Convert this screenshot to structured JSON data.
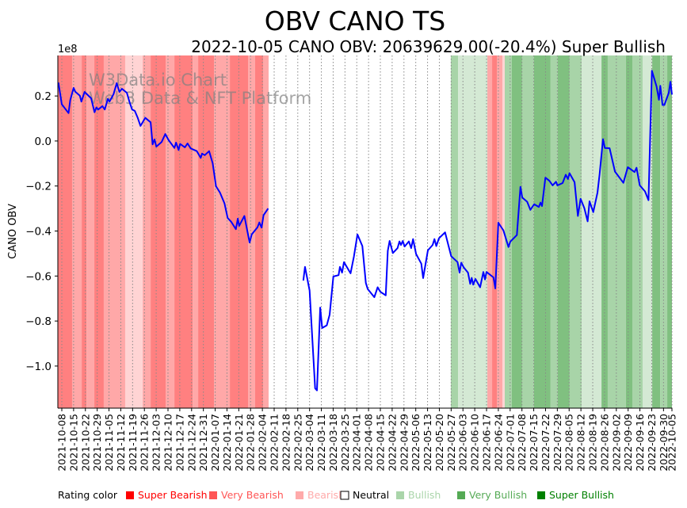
{
  "chart_data": {
    "type": "line",
    "title": "OBV CANO TS",
    "subtitle": "2022-10-05 CANO OBV: 20639629.00(-20.4%) Super Bullish",
    "ylabel": "CANO OBV",
    "y_scale_label": "1e8",
    "y_multiplier": 100000000,
    "ylim": [
      -1.187,
      0.38
    ],
    "yticks": [
      0.2,
      0.0,
      -0.2,
      -0.4,
      -0.6,
      -0.8,
      -1.0
    ],
    "ytick_labels": [
      "0.2",
      "0.0",
      "−0.2",
      "−0.4",
      "−0.6",
      "−0.8",
      "−1.0"
    ],
    "x_unit": "days since 2021-10-08",
    "xlim": [
      -2.35,
      362
    ],
    "xticks": [
      0,
      7,
      14,
      21,
      28,
      35,
      42,
      49,
      56,
      63,
      70,
      77,
      84,
      91,
      98,
      105,
      112,
      119,
      126,
      133,
      140,
      147,
      154,
      161,
      168,
      175,
      182,
      189,
      196,
      203,
      210,
      217,
      224,
      231,
      238,
      245,
      252,
      259,
      266,
      273,
      280,
      287,
      294,
      301,
      308,
      315,
      322,
      329,
      336,
      343,
      350,
      357,
      362
    ],
    "xtick_labels": [
      "2021-10-08",
      "2021-10-15",
      "2021-10-22",
      "2021-10-29",
      "2021-11-05",
      "2021-11-12",
      "2021-11-19",
      "2021-11-26",
      "2021-12-03",
      "2021-12-10",
      "2021-12-17",
      "2021-12-24",
      "2021-12-31",
      "2022-01-07",
      "2022-01-14",
      "2022-01-21",
      "2022-01-28",
      "2022-02-04",
      "2022-02-11",
      "2022-02-18",
      "2022-02-25",
      "2022-03-04",
      "2022-03-11",
      "2022-03-18",
      "2022-03-25",
      "2022-04-01",
      "2022-04-08",
      "2022-04-15",
      "2022-04-22",
      "2022-04-29",
      "2022-05-06",
      "2022-05-13",
      "2022-05-20",
      "2022-05-27",
      "2022-06-03",
      "2022-06-10",
      "2022-06-17",
      "2022-06-24",
      "2022-07-01",
      "2022-07-08",
      "2022-07-15",
      "2022-07-22",
      "2022-07-29",
      "2022-08-05",
      "2022-08-12",
      "2022-08-19",
      "2022-08-26",
      "2022-09-02",
      "2022-09-09",
      "2022-09-16",
      "2022-09-23",
      "2022-09-30",
      "2022-10-05"
    ],
    "grid": "vertical dotted at x ticks",
    "line_color": "#0000ff",
    "series": [
      {
        "name": "OBV segment 1",
        "points": [
          [
            -2,
            0.26
          ],
          [
            0,
            0.163
          ],
          [
            4,
            0.124
          ],
          [
            5,
            0.181
          ],
          [
            7,
            0.236
          ],
          [
            8,
            0.219
          ],
          [
            10.7,
            0.201
          ],
          [
            11.6,
            0.175
          ],
          [
            13.5,
            0.218
          ],
          [
            17.4,
            0.19
          ],
          [
            19.4,
            0.128
          ],
          [
            20.5,
            0.149
          ],
          [
            21.6,
            0.14
          ],
          [
            24.1,
            0.155
          ],
          [
            25.5,
            0.14
          ],
          [
            27.3,
            0.187
          ],
          [
            28.3,
            0.175
          ],
          [
            30.7,
            0.208
          ],
          [
            32.6,
            0.257
          ],
          [
            34.2,
            0.218
          ],
          [
            35.7,
            0.232
          ],
          [
            38.6,
            0.214
          ],
          [
            40.1,
            0.175
          ],
          [
            41.7,
            0.14
          ],
          [
            43.3,
            0.134
          ],
          [
            45.1,
            0.102
          ],
          [
            46.7,
            0.067
          ],
          [
            49.5,
            0.103
          ],
          [
            52.7,
            0.083
          ],
          [
            53.9,
            -0.015
          ],
          [
            55,
            0.007
          ],
          [
            56.1,
            -0.025
          ],
          [
            59.2,
            -0.005
          ],
          [
            61.4,
            0.031
          ],
          [
            63.3,
            0.005
          ],
          [
            66.8,
            -0.031
          ],
          [
            67.8,
            -0.007
          ],
          [
            69.3,
            -0.04
          ],
          [
            70.2,
            -0.013
          ],
          [
            73,
            -0.028
          ],
          [
            74.6,
            -0.011
          ],
          [
            76.5,
            -0.033
          ],
          [
            80.1,
            -0.045
          ],
          [
            82.4,
            -0.075
          ],
          [
            83.2,
            -0.056
          ],
          [
            84.8,
            -0.063
          ],
          [
            87.4,
            -0.045
          ],
          [
            89.5,
            -0.099
          ],
          [
            91.5,
            -0.201
          ],
          [
            93.9,
            -0.23
          ],
          [
            96.5,
            -0.277
          ],
          [
            98.4,
            -0.342
          ],
          [
            100.5,
            -0.359
          ],
          [
            103.3,
            -0.392
          ],
          [
            104.4,
            -0.345
          ],
          [
            105.2,
            -0.377
          ],
          [
            108.3,
            -0.333
          ],
          [
            111.4,
            -0.451
          ],
          [
            112.7,
            -0.415
          ],
          [
            116.1,
            -0.383
          ],
          [
            117.2,
            -0.362
          ],
          [
            118.5,
            -0.385
          ],
          [
            119.7,
            -0.33
          ],
          [
            122.4,
            -0.3
          ]
        ]
      },
      {
        "name": "OBV segment 2",
        "points": [
          [
            143.3,
            -0.62
          ],
          [
            144.3,
            -0.559
          ],
          [
            147,
            -0.664
          ],
          [
            150.3,
            -1.099
          ],
          [
            151.4,
            -1.108
          ],
          [
            153.3,
            -0.74
          ],
          [
            154.5,
            -0.831
          ],
          [
            157.2,
            -0.819
          ],
          [
            158.9,
            -0.772
          ],
          [
            161.1,
            -0.602
          ],
          [
            164.2,
            -0.596
          ],
          [
            165,
            -0.559
          ],
          [
            166.3,
            -0.585
          ],
          [
            167.4,
            -0.538
          ],
          [
            171.3,
            -0.588
          ],
          [
            173.3,
            -0.514
          ],
          [
            175.4,
            -0.415
          ],
          [
            178.3,
            -0.467
          ],
          [
            180.4,
            -0.631
          ],
          [
            181.5,
            -0.658
          ],
          [
            185.4,
            -0.694
          ],
          [
            187.4,
            -0.65
          ],
          [
            189,
            -0.67
          ],
          [
            192.2,
            -0.686
          ],
          [
            193.4,
            -0.488
          ],
          [
            194.5,
            -0.444
          ],
          [
            196.4,
            -0.498
          ],
          [
            199.2,
            -0.476
          ],
          [
            200.3,
            -0.446
          ],
          [
            201.2,
            -0.462
          ],
          [
            202.3,
            -0.444
          ],
          [
            203.4,
            -0.469
          ],
          [
            205.9,
            -0.446
          ],
          [
            207.3,
            -0.476
          ],
          [
            208.4,
            -0.436
          ],
          [
            210.2,
            -0.502
          ],
          [
            213.3,
            -0.545
          ],
          [
            214.4,
            -0.609
          ],
          [
            217.2,
            -0.486
          ],
          [
            220,
            -0.462
          ],
          [
            221.1,
            -0.436
          ],
          [
            222.2,
            -0.467
          ],
          [
            223.8,
            -0.432
          ],
          [
            227.4,
            -0.406
          ],
          [
            231,
            -0.512
          ],
          [
            234.8,
            -0.538
          ],
          [
            236,
            -0.585
          ],
          [
            237,
            -0.541
          ],
          [
            238.4,
            -0.561
          ],
          [
            241,
            -0.585
          ],
          [
            242.3,
            -0.635
          ],
          [
            243.2,
            -0.608
          ],
          [
            244.1,
            -0.638
          ],
          [
            245.4,
            -0.613
          ],
          [
            248.2,
            -0.65
          ],
          [
            250.1,
            -0.582
          ],
          [
            251.1,
            -0.615
          ],
          [
            252,
            -0.582
          ],
          [
            256.1,
            -0.606
          ],
          [
            257.2,
            -0.655
          ],
          [
            259,
            -0.363
          ],
          [
            262,
            -0.397
          ],
          [
            265,
            -0.471
          ],
          [
            266.1,
            -0.447
          ],
          [
            270,
            -0.418
          ],
          [
            272.1,
            -0.204
          ],
          [
            273.2,
            -0.251
          ],
          [
            276.1,
            -0.27
          ],
          [
            278,
            -0.306
          ],
          [
            280.3,
            -0.281
          ],
          [
            283,
            -0.293
          ],
          [
            284,
            -0.274
          ],
          [
            284.9,
            -0.289
          ],
          [
            286.9,
            -0.163
          ],
          [
            289.3,
            -0.177
          ],
          [
            291.2,
            -0.197
          ],
          [
            293.2,
            -0.181
          ],
          [
            294,
            -0.197
          ],
          [
            297.1,
            -0.187
          ],
          [
            299,
            -0.15
          ],
          [
            300.3,
            -0.169
          ],
          [
            301.2,
            -0.143
          ],
          [
            304.2,
            -0.183
          ],
          [
            306.2,
            -0.333
          ],
          [
            307.8,
            -0.257
          ],
          [
            310,
            -0.298
          ],
          [
            312,
            -0.357
          ],
          [
            313.1,
            -0.268
          ],
          [
            315.3,
            -0.316
          ],
          [
            317.8,
            -0.23
          ],
          [
            319.1,
            -0.148
          ],
          [
            321.1,
            0.008
          ],
          [
            322.2,
            -0.031
          ],
          [
            325,
            -0.032
          ],
          [
            328.2,
            -0.136
          ],
          [
            333.2,
            -0.186
          ],
          [
            335.8,
            -0.116
          ],
          [
            339.8,
            -0.138
          ],
          [
            341,
            -0.119
          ],
          [
            342.9,
            -0.197
          ],
          [
            346,
            -0.224
          ],
          [
            348.1,
            -0.263
          ],
          [
            350.1,
            0.312
          ],
          [
            352.9,
            0.242
          ],
          [
            354.3,
            0.183
          ],
          [
            355.1,
            0.245
          ],
          [
            356.4,
            0.16
          ],
          [
            357.5,
            0.16
          ],
          [
            360.1,
            0.214
          ],
          [
            361.1,
            0.263
          ],
          [
            362,
            0.206
          ]
        ]
      }
    ],
    "rating_bands": [
      {
        "start": -2.35,
        "end": 6.1,
        "rating": "Super Bearish"
      },
      {
        "start": 6.1,
        "end": 11.8,
        "rating": "Very Bearish"
      },
      {
        "start": 11.8,
        "end": 14.6,
        "rating": "Super Bearish"
      },
      {
        "start": 14.6,
        "end": 19.3,
        "rating": "Very Bearish"
      },
      {
        "start": 19.3,
        "end": 24.9,
        "rating": "Super Bearish"
      },
      {
        "start": 24.9,
        "end": 37.6,
        "rating": "Very Bearish"
      },
      {
        "start": 37.6,
        "end": 48.0,
        "rating": "Bearish"
      },
      {
        "start": 48.0,
        "end": 52.7,
        "rating": "Very Bearish"
      },
      {
        "start": 52.7,
        "end": 61.6,
        "rating": "Super Bearish"
      },
      {
        "start": 61.6,
        "end": 66.8,
        "rating": "Very Bearish"
      },
      {
        "start": 66.8,
        "end": 77.6,
        "rating": "Super Bearish"
      },
      {
        "start": 77.6,
        "end": 80.9,
        "rating": "Very Bearish"
      },
      {
        "start": 80.9,
        "end": 90.3,
        "rating": "Super Bearish"
      },
      {
        "start": 90.3,
        "end": 99.7,
        "rating": "Very Bearish"
      },
      {
        "start": 99.7,
        "end": 110.5,
        "rating": "Super Bearish"
      },
      {
        "start": 110.5,
        "end": 114.7,
        "rating": "Very Bearish"
      },
      {
        "start": 114.7,
        "end": 119.4,
        "rating": "Super Bearish"
      },
      {
        "start": 119.4,
        "end": 122.7,
        "rating": "Very Bearish"
      },
      {
        "start": 230.8,
        "end": 235.1,
        "rating": "Very Bullish"
      },
      {
        "start": 235.1,
        "end": 252.5,
        "rating": "Bullish"
      },
      {
        "start": 252.5,
        "end": 255.3,
        "rating": "Very Bearish"
      },
      {
        "start": 255.3,
        "end": 258.1,
        "rating": "Super Bearish"
      },
      {
        "start": 258.1,
        "end": 261.4,
        "rating": "Very Bearish"
      },
      {
        "start": 261.4,
        "end": 262.8,
        "rating": "Bearish"
      },
      {
        "start": 262.8,
        "end": 267.0,
        "rating": "Very Bullish"
      },
      {
        "start": 267.0,
        "end": 273.1,
        "rating": "Super Bullish"
      },
      {
        "start": 273.1,
        "end": 280.2,
        "rating": "Very Bullish"
      },
      {
        "start": 280.2,
        "end": 290.0,
        "rating": "Super Bullish"
      },
      {
        "start": 290.0,
        "end": 294.3,
        "rating": "Very Bullish"
      },
      {
        "start": 294.3,
        "end": 301.3,
        "rating": "Super Bullish"
      },
      {
        "start": 301.3,
        "end": 308.4,
        "rating": "Very Bullish"
      },
      {
        "start": 308.4,
        "end": 320.2,
        "rating": "Bullish"
      },
      {
        "start": 320.2,
        "end": 323.9,
        "rating": "Super Bullish"
      },
      {
        "start": 323.9,
        "end": 334.7,
        "rating": "Very Bullish"
      },
      {
        "start": 334.7,
        "end": 338.5,
        "rating": "Super Bullish"
      },
      {
        "start": 338.5,
        "end": 344.6,
        "rating": "Very Bullish"
      },
      {
        "start": 344.6,
        "end": 350.3,
        "rating": "Bullish"
      },
      {
        "start": 350.3,
        "end": 355.0,
        "rating": "Super Bullish"
      },
      {
        "start": 355.0,
        "end": 359.2,
        "rating": "Very Bullish"
      },
      {
        "start": 359.2,
        "end": 362.0,
        "rating": "Super Bullish"
      }
    ],
    "band_colors": {
      "Super Bearish": "#ff8080",
      "Very Bearish": "#ffa8a8",
      "Bearish": "#ffd4d4",
      "Bullish": "#d4e9d4",
      "Very Bullish": "#a8d4a8",
      "Super Bullish": "#80c080"
    },
    "legend": {
      "title": "Rating color",
      "placement": "bottom",
      "items": [
        {
          "label": "Super Bearish",
          "color": "#ff0000"
        },
        {
          "label": "Very Bearish",
          "color": "#ff5555"
        },
        {
          "label": "Bearish",
          "color": "#ffaaaa"
        },
        {
          "label": "Neutral",
          "color": "#ffffff"
        },
        {
          "label": "Bullish",
          "color": "#aad5aa"
        },
        {
          "label": "Very Bullish",
          "color": "#55aa55"
        },
        {
          "label": "Super Bullish",
          "color": "#008000"
        }
      ]
    },
    "watermark": [
      "W3Data.io Chart",
      "Web3 Data & NFT Platform"
    ]
  }
}
